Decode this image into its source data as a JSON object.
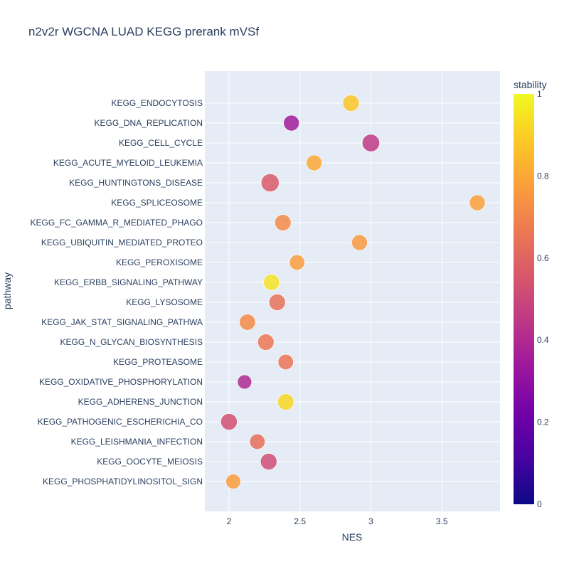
{
  "chart_data": {
    "type": "scatter",
    "title": "n2v2r WGCNA LUAD KEGG prerank mVSf",
    "xlabel": "NES",
    "ylabel": "pathway",
    "xlim": [
      1.83,
      3.91
    ],
    "xticks": [
      "2",
      "2.5",
      "3",
      "3.5"
    ],
    "xtick_values": [
      2,
      2.5,
      3,
      3.5
    ],
    "grid": true,
    "colorbar": {
      "title": "stability",
      "range": [
        0,
        1
      ],
      "ticks": [
        "0",
        "0.2",
        "0.4",
        "0.6",
        "0.8",
        "1"
      ],
      "tick_values": [
        0,
        0.2,
        0.4,
        0.6,
        0.8,
        1
      ],
      "colorscale": [
        "#0d0887",
        "#46039f",
        "#7201a8",
        "#9c179e",
        "#bd3786",
        "#d8576b",
        "#ed7953",
        "#fb9f3a",
        "#fdca26",
        "#f0f921"
      ]
    },
    "points": [
      {
        "pathway": "KEGG_ENDOCYTOSIS",
        "nes": 2.86,
        "stability": 0.88,
        "size": 0.82
      },
      {
        "pathway": "KEGG_DNA_REPLICATION",
        "nes": 2.44,
        "stability": 0.35,
        "size": 0.75
      },
      {
        "pathway": "KEGG_CELL_CYCLE",
        "nes": 3.0,
        "stability": 0.45,
        "size": 0.9
      },
      {
        "pathway": "KEGG_ACUTE_MYELOID_LEUKEMIA",
        "nes": 2.6,
        "stability": 0.8,
        "size": 0.75
      },
      {
        "pathway": "KEGG_HUNTINGTONS_DISEASE",
        "nes": 2.29,
        "stability": 0.57,
        "size": 0.95
      },
      {
        "pathway": "KEGG_SPLICEOSOME",
        "nes": 3.75,
        "stability": 0.78,
        "size": 0.75
      },
      {
        "pathway": "KEGG_FC_GAMMA_R_MEDIATED_PHAGO",
        "nes": 2.38,
        "stability": 0.72,
        "size": 0.8
      },
      {
        "pathway": "KEGG_UBIQUITIN_MEDIATED_PROTEO",
        "nes": 2.92,
        "stability": 0.76,
        "size": 0.75
      },
      {
        "pathway": "KEGG_PEROXISOME",
        "nes": 2.48,
        "stability": 0.77,
        "size": 0.72
      },
      {
        "pathway": "KEGG_ERBB_SIGNALING_PATHWAY",
        "nes": 2.3,
        "stability": 0.95,
        "size": 0.78
      },
      {
        "pathway": "KEGG_LYSOSOME",
        "nes": 2.34,
        "stability": 0.64,
        "size": 0.82
      },
      {
        "pathway": "KEGG_JAK_STAT_SIGNALING_PATHWA",
        "nes": 2.13,
        "stability": 0.72,
        "size": 0.78
      },
      {
        "pathway": "KEGG_N_GLYCAN_BIOSYNTHESIS",
        "nes": 2.26,
        "stability": 0.66,
        "size": 0.8
      },
      {
        "pathway": "KEGG_PROTEASOME",
        "nes": 2.4,
        "stability": 0.65,
        "size": 0.72
      },
      {
        "pathway": "KEGG_OXIDATIVE_PHOSPHORYLATION",
        "nes": 2.11,
        "stability": 0.4,
        "size": 0.62
      },
      {
        "pathway": "KEGG_ADHERENS_JUNCTION",
        "nes": 2.4,
        "stability": 0.92,
        "size": 0.8
      },
      {
        "pathway": "KEGG_PATHOGENIC_ESCHERICHIA_CO",
        "nes": 2.0,
        "stability": 0.53,
        "size": 0.82
      },
      {
        "pathway": "KEGG_LEISHMANIA_INFECTION",
        "nes": 2.2,
        "stability": 0.63,
        "size": 0.72
      },
      {
        "pathway": "KEGG_OOCYTE_MEIOSIS",
        "nes": 2.28,
        "stability": 0.52,
        "size": 0.82
      },
      {
        "pathway": "KEGG_PHOSPHATIDYLINOSITOL_SIGN",
        "nes": 2.03,
        "stability": 0.77,
        "size": 0.67
      }
    ]
  }
}
